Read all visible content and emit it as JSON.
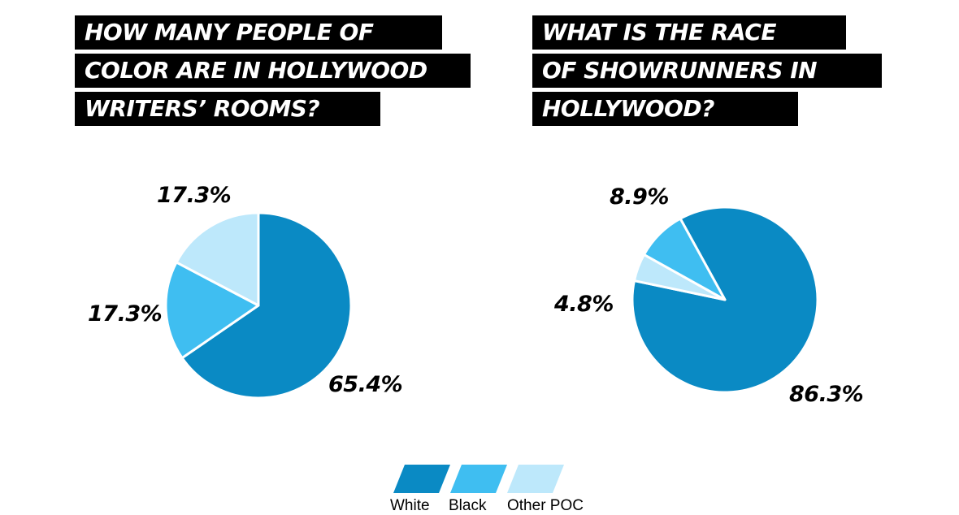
{
  "colors": {
    "white": "#0a8ac4",
    "black": "#3fbef1",
    "other_poc": "#bde8fb",
    "title_bg": "#000000",
    "title_fg": "#ffffff"
  },
  "charts": {
    "left": {
      "title_lines": [
        "HOW MANY PEOPLE OF",
        "COLOR ARE IN HOLLYWOOD",
        "WRITERS’ ROOMS?"
      ]
    },
    "right": {
      "title_lines": [
        "WHAT IS THE RACE",
        "OF SHOWRUNNERS IN",
        "HOLLYWOOD?"
      ]
    }
  },
  "chart_data": [
    {
      "type": "pie",
      "title": "HOW MANY PEOPLE OF COLOR ARE IN HOLLYWOOD WRITERS’ ROOMS?",
      "categories": [
        "White",
        "Black",
        "Other POC"
      ],
      "values": [
        65.4,
        17.3,
        17.3
      ],
      "data_labels": [
        "65.4%",
        "17.3%",
        "17.3%"
      ],
      "legend_position": "bottom"
    },
    {
      "type": "pie",
      "title": "WHAT IS THE RACE OF SHOWRUNNERS IN HOLLYWOOD?",
      "categories": [
        "White",
        "Other POC",
        "Black"
      ],
      "values": [
        86.3,
        4.8,
        8.9
      ],
      "data_labels": [
        "86.3%",
        "4.8%",
        "8.9%"
      ],
      "legend_position": "bottom"
    }
  ],
  "legend": {
    "items": [
      {
        "label": "White",
        "color_key": "white"
      },
      {
        "label": "Black",
        "color_key": "black"
      },
      {
        "label": "Other POC",
        "color_key": "other_poc"
      }
    ]
  }
}
